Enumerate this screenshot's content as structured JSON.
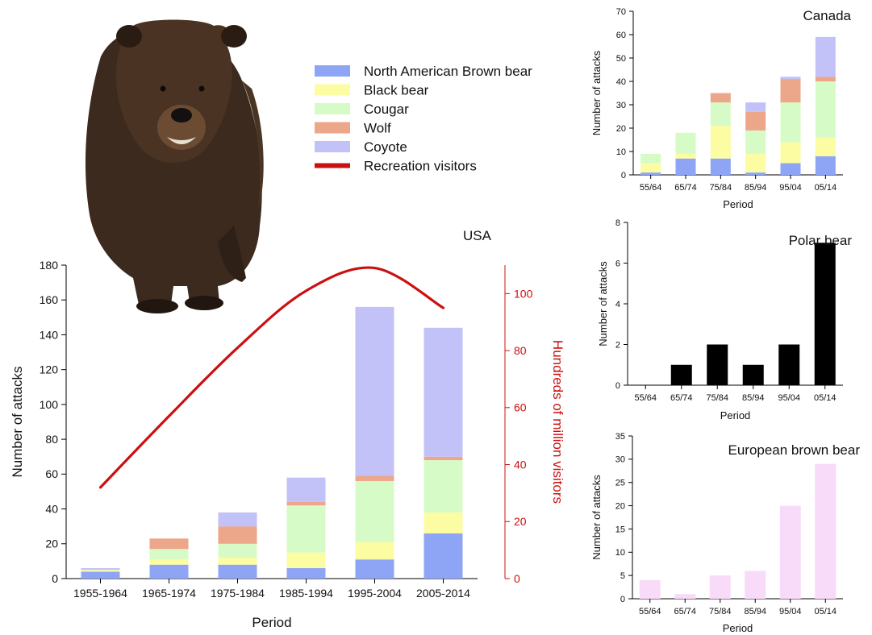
{
  "colors": {
    "na_brown": "#8ea5f5",
    "black_bear": "#fcfca2",
    "cougar": "#d7fbc6",
    "wolf": "#eca68a",
    "coyote": "#c2c2f8",
    "visitors": "#cc1010",
    "polar": "#000000",
    "euro": "#f8dbf8",
    "bear_fur": "#3b2a1d"
  },
  "legend": {
    "items": [
      {
        "label": "North American Brown bear",
        "color": "#8ea5f5",
        "kind": "box"
      },
      {
        "label": "Black bear",
        "color": "#fcfca2",
        "kind": "box"
      },
      {
        "label": "Cougar",
        "color": "#d7fbc6",
        "kind": "box"
      },
      {
        "label": "Wolf",
        "color": "#eca68a",
        "kind": "box"
      },
      {
        "label": "Coyote",
        "color": "#c2c2f8",
        "kind": "box"
      },
      {
        "label": "Recreation visitors",
        "color": "#cc1010",
        "kind": "line"
      }
    ]
  },
  "illustration": {
    "icon": "brown-bear-photo"
  },
  "chart_data": [
    {
      "id": "usa",
      "type": "bar",
      "stacked": true,
      "title": "USA",
      "xlabel": "Period",
      "ylabel": "Number of attacks",
      "y2label": "Hundreds of million visitors",
      "categories": [
        "1955-1964",
        "1965-1974",
        "1975-1984",
        "1985-1994",
        "1995-2004",
        "2005-2014"
      ],
      "ylim": [
        0,
        180
      ],
      "yticks": [
        0,
        20,
        40,
        60,
        80,
        100,
        120,
        140,
        160,
        180
      ],
      "y2lim": [
        0,
        110
      ],
      "y2ticks": [
        0,
        20,
        40,
        60,
        80,
        100
      ],
      "series": [
        {
          "name": "North American Brown bear",
          "values": [
            4,
            8,
            8,
            6,
            11,
            26
          ]
        },
        {
          "name": "Black bear",
          "values": [
            1,
            3,
            4,
            9,
            10,
            12
          ]
        },
        {
          "name": "Cougar",
          "values": [
            0,
            6,
            8,
            27,
            35,
            30
          ]
        },
        {
          "name": "Wolf",
          "values": [
            0,
            6,
            10,
            2,
            3,
            2
          ]
        },
        {
          "name": "Coyote",
          "values": [
            1,
            0,
            8,
            14,
            97,
            74
          ]
        }
      ],
      "line": {
        "name": "Recreation visitors",
        "values": [
          32,
          57,
          81,
          101,
          109,
          95
        ]
      }
    },
    {
      "id": "canada",
      "type": "bar",
      "stacked": true,
      "title": "Canada",
      "xlabel": "Period",
      "ylabel": "Number of attacks",
      "categories": [
        "55/64",
        "65/74",
        "75/84",
        "85/94",
        "95/04",
        "05/14"
      ],
      "ylim": [
        0,
        70
      ],
      "yticks": [
        0,
        10,
        20,
        30,
        40,
        50,
        60,
        70
      ],
      "series": [
        {
          "name": "North American Brown bear",
          "values": [
            1,
            7,
            7,
            1,
            5,
            8
          ]
        },
        {
          "name": "Black bear",
          "values": [
            4,
            2,
            14,
            8,
            9,
            8
          ]
        },
        {
          "name": "Cougar",
          "values": [
            4,
            9,
            10,
            10,
            17,
            24
          ]
        },
        {
          "name": "Wolf",
          "values": [
            0,
            0,
            4,
            8,
            10,
            2
          ]
        },
        {
          "name": "Coyote",
          "values": [
            0,
            0,
            0,
            4,
            1,
            17
          ]
        }
      ]
    },
    {
      "id": "polar",
      "type": "bar",
      "title": "Polar bear",
      "xlabel": "Period",
      "ylabel": "Number of attacks",
      "categories": [
        "55/64",
        "65/74",
        "75/84",
        "85/94",
        "95/04",
        "05/14"
      ],
      "ylim": [
        0,
        8
      ],
      "yticks": [
        0,
        2,
        4,
        6,
        8
      ],
      "values": [
        0,
        1,
        2,
        1,
        2,
        7
      ]
    },
    {
      "id": "euro",
      "type": "bar",
      "title": "European brown bear",
      "xlabel": "Period",
      "ylabel": "Number of attacks",
      "categories": [
        "55/64",
        "65/74",
        "75/84",
        "85/94",
        "95/04",
        "05/14"
      ],
      "ylim": [
        0,
        35
      ],
      "yticks": [
        0,
        5,
        10,
        15,
        20,
        25,
        30,
        35
      ],
      "values": [
        4,
        1,
        5,
        6,
        20,
        29
      ]
    }
  ]
}
